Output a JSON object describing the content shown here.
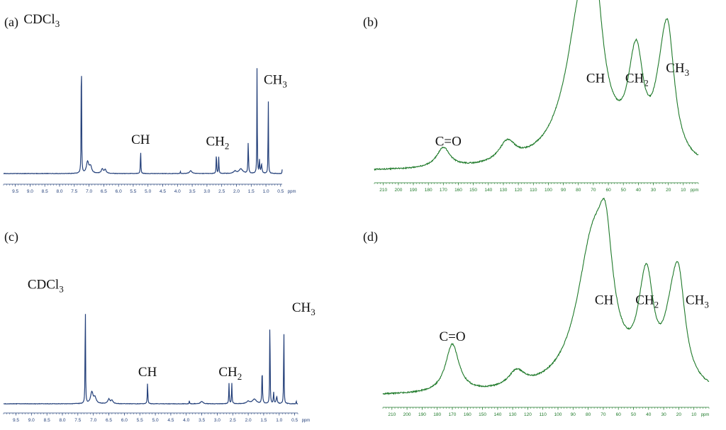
{
  "chart_data": [
    {
      "panel": "(a)",
      "type": "line",
      "color": "#24407a",
      "x_reversed": true,
      "xlim": [
        9.9,
        0.4
      ],
      "ylim": [
        0,
        1
      ],
      "x_ticks": [
        "9.5",
        "9.0",
        "8.5",
        "8.0",
        "7.5",
        "7.0",
        "6.5",
        "6.0",
        "5.5",
        "5.0",
        "4.5",
        "4.0",
        "3.5",
        "3.0",
        "2.5",
        "2.0",
        "1.5",
        "1.0",
        "0.5"
      ],
      "x_tick_values": [
        9.5,
        9.0,
        8.5,
        8.0,
        7.5,
        7.0,
        6.5,
        6.0,
        5.5,
        5.0,
        4.5,
        4.0,
        3.5,
        3.0,
        2.5,
        2.0,
        1.5,
        1.0,
        0.5
      ],
      "xunit": "ppm",
      "peaks": [
        {
          "x": 7.26,
          "h": 0.99,
          "w": 0.008
        },
        {
          "x": 7.05,
          "h": 0.075,
          "w": 0.05
        },
        {
          "x": 6.95,
          "h": 0.045,
          "w": 0.05
        },
        {
          "x": 6.55,
          "h": 0.03,
          "w": 0.04
        },
        {
          "x": 6.45,
          "h": 0.025,
          "w": 0.04
        },
        {
          "x": 5.25,
          "h": 0.16,
          "w": 0.01
        },
        {
          "x": 3.9,
          "h": 0.012,
          "w": 0.01
        },
        {
          "x": 3.55,
          "h": 0.018,
          "w": 0.05
        },
        {
          "x": 2.68,
          "h": 0.14,
          "w": 0.01
        },
        {
          "x": 2.6,
          "h": 0.11,
          "w": 0.01
        },
        {
          "x": 2.05,
          "h": 0.015,
          "w": 0.06
        },
        {
          "x": 1.85,
          "h": 0.03,
          "w": 0.08
        },
        {
          "x": 1.6,
          "h": 0.21,
          "w": 0.012
        },
        {
          "x": 1.3,
          "h": 0.74,
          "w": 0.008
        },
        {
          "x": 1.22,
          "h": 0.09,
          "w": 0.012
        },
        {
          "x": 1.15,
          "h": 0.06,
          "w": 0.02
        },
        {
          "x": 0.92,
          "h": 0.55,
          "w": 0.008
        },
        {
          "x": 0.45,
          "h": 0.03,
          "w": 0.006
        }
      ],
      "annotations": [
        {
          "main": "CDCl",
          "sub": "3",
          "x": 7.26
        },
        {
          "main": "CH",
          "sub": "",
          "x": 5.25
        },
        {
          "main": "CH",
          "sub": "2",
          "x": 2.64
        },
        {
          "main": "CH",
          "sub": "3",
          "x": 0.92
        }
      ]
    },
    {
      "panel": "(b)",
      "type": "line",
      "color": "#1f7a2a",
      "x_reversed": true,
      "xlim": [
        216,
        0
      ],
      "ylim": [
        0,
        1
      ],
      "x_ticks": [
        "210",
        "200",
        "190",
        "180",
        "170",
        "160",
        "150",
        "140",
        "130",
        "120",
        "110",
        "100",
        "90",
        "80",
        "70",
        "60",
        "50",
        "40",
        "30",
        "20",
        "10"
      ],
      "x_tick_values": [
        210,
        200,
        190,
        180,
        170,
        160,
        150,
        140,
        130,
        120,
        110,
        100,
        90,
        80,
        70,
        60,
        50,
        40,
        30,
        20,
        10
      ],
      "xunit": "ppm",
      "peaks": [
        {
          "x": 170,
          "h": 0.12,
          "w": 0.25
        },
        {
          "x": 128,
          "h": 0.07,
          "w": 0.3
        },
        {
          "x": 126.5,
          "h": 0.05,
          "w": 0.3
        },
        {
          "x": 77.0,
          "h": 1.0,
          "w": 0.6
        },
        {
          "x": 68.5,
          "h": 0.49,
          "w": 0.25
        },
        {
          "x": 44.5,
          "h": 0.13,
          "w": 0.25
        },
        {
          "x": 41.0,
          "h": 0.49,
          "w": 0.25
        },
        {
          "x": 27.5,
          "h": 0.05,
          "w": 0.25
        },
        {
          "x": 25.0,
          "h": 0.14,
          "w": 0.25
        },
        {
          "x": 22.0,
          "h": 0.18,
          "w": 0.25
        },
        {
          "x": 20.0,
          "h": 0.55,
          "w": 0.25
        }
      ],
      "annotations": [
        {
          "main": "C=O",
          "sub": "",
          "x": 170
        },
        {
          "main": "CH",
          "sub": "",
          "x": 68.5
        },
        {
          "main": "CH",
          "sub": "2",
          "x": 41.0
        },
        {
          "main": "CH",
          "sub": "3",
          "x": 20.0
        }
      ]
    },
    {
      "panel": "(c)",
      "type": "line",
      "color": "#24407a",
      "x_reversed": true,
      "xlim": [
        9.9,
        0.4
      ],
      "ylim": [
        0,
        1
      ],
      "x_ticks": [
        "9.5",
        "9.0",
        "8.5",
        "8.0",
        "7.5",
        "7.0",
        "6.5",
        "6.0",
        "5.5",
        "5.0",
        "4.5",
        "4.0",
        "3.5",
        "3.0",
        "2.5",
        "2.0",
        "1.5",
        "1.0",
        "0.5"
      ],
      "x_tick_values": [
        9.5,
        9.0,
        8.5,
        8.0,
        7.5,
        7.0,
        6.5,
        6.0,
        5.5,
        5.0,
        4.5,
        4.0,
        3.5,
        3.0,
        2.5,
        2.0,
        1.5,
        1.0,
        0.5
      ],
      "xunit": "ppm",
      "peaks": [
        {
          "x": 7.26,
          "h": 0.99,
          "w": 0.008
        },
        {
          "x": 7.05,
          "h": 0.1,
          "w": 0.05
        },
        {
          "x": 6.95,
          "h": 0.05,
          "w": 0.05
        },
        {
          "x": 6.5,
          "h": 0.04,
          "w": 0.04
        },
        {
          "x": 6.4,
          "h": 0.03,
          "w": 0.04
        },
        {
          "x": 5.25,
          "h": 0.19,
          "w": 0.01
        },
        {
          "x": 3.9,
          "h": 0.03,
          "w": 0.008
        },
        {
          "x": 3.5,
          "h": 0.02,
          "w": 0.05
        },
        {
          "x": 2.62,
          "h": 0.18,
          "w": 0.01
        },
        {
          "x": 2.53,
          "h": 0.18,
          "w": 0.01
        },
        {
          "x": 2.0,
          "h": 0.02,
          "w": 0.06
        },
        {
          "x": 1.8,
          "h": 0.04,
          "w": 0.08
        },
        {
          "x": 1.55,
          "h": 0.3,
          "w": 0.012
        },
        {
          "x": 1.3,
          "h": 0.84,
          "w": 0.008
        },
        {
          "x": 1.18,
          "h": 0.1,
          "w": 0.012
        },
        {
          "x": 1.08,
          "h": 0.06,
          "w": 0.02
        },
        {
          "x": 0.85,
          "h": 0.74,
          "w": 0.008
        },
        {
          "x": 0.45,
          "h": 0.03,
          "w": 0.006
        }
      ],
      "annotations": [
        {
          "main": "CDCl",
          "sub": "3",
          "x": 7.26
        },
        {
          "main": "CH",
          "sub": "",
          "x": 5.25
        },
        {
          "main": "CH",
          "sub": "2",
          "x": 2.58
        },
        {
          "main": "CH",
          "sub": "3",
          "x": 0.85
        }
      ]
    },
    {
      "panel": "(d)",
      "type": "line",
      "color": "#1f7a2a",
      "x_reversed": true,
      "xlim": [
        216,
        0
      ],
      "ylim": [
        0,
        1
      ],
      "x_ticks": [
        "210",
        "200",
        "190",
        "180",
        "170",
        "160",
        "150",
        "140",
        "130",
        "120",
        "110",
        "100",
        "90",
        "80",
        "70",
        "60",
        "50",
        "40",
        "30",
        "20",
        "10"
      ],
      "x_tick_values": [
        210,
        200,
        190,
        180,
        170,
        160,
        150,
        140,
        130,
        120,
        110,
        100,
        90,
        80,
        70,
        60,
        50,
        40,
        30,
        20,
        10
      ],
      "xunit": "ppm",
      "peaks": [
        {
          "x": 170,
          "h": 0.33,
          "w": 0.25
        },
        {
          "x": 128,
          "h": 0.07,
          "w": 0.3
        },
        {
          "x": 126.5,
          "h": 0.04,
          "w": 0.3
        },
        {
          "x": 77.0,
          "h": 1.0,
          "w": 0.6
        },
        {
          "x": 68.5,
          "h": 0.58,
          "w": 0.25
        },
        {
          "x": 44.5,
          "h": 0.16,
          "w": 0.25
        },
        {
          "x": 41.0,
          "h": 0.58,
          "w": 0.25
        },
        {
          "x": 27.5,
          "h": 0.07,
          "w": 0.25
        },
        {
          "x": 25.0,
          "h": 0.17,
          "w": 0.25
        },
        {
          "x": 22.0,
          "h": 0.12,
          "w": 0.25
        },
        {
          "x": 20.0,
          "h": 0.58,
          "w": 0.25
        }
      ],
      "annotations": [
        {
          "main": "C=O",
          "sub": "",
          "x": 170
        },
        {
          "main": "CH",
          "sub": "",
          "x": 68.5
        },
        {
          "main": "CH",
          "sub": "2",
          "x": 41.0
        },
        {
          "main": "CH",
          "sub": "3",
          "x": 20.0
        }
      ]
    }
  ]
}
